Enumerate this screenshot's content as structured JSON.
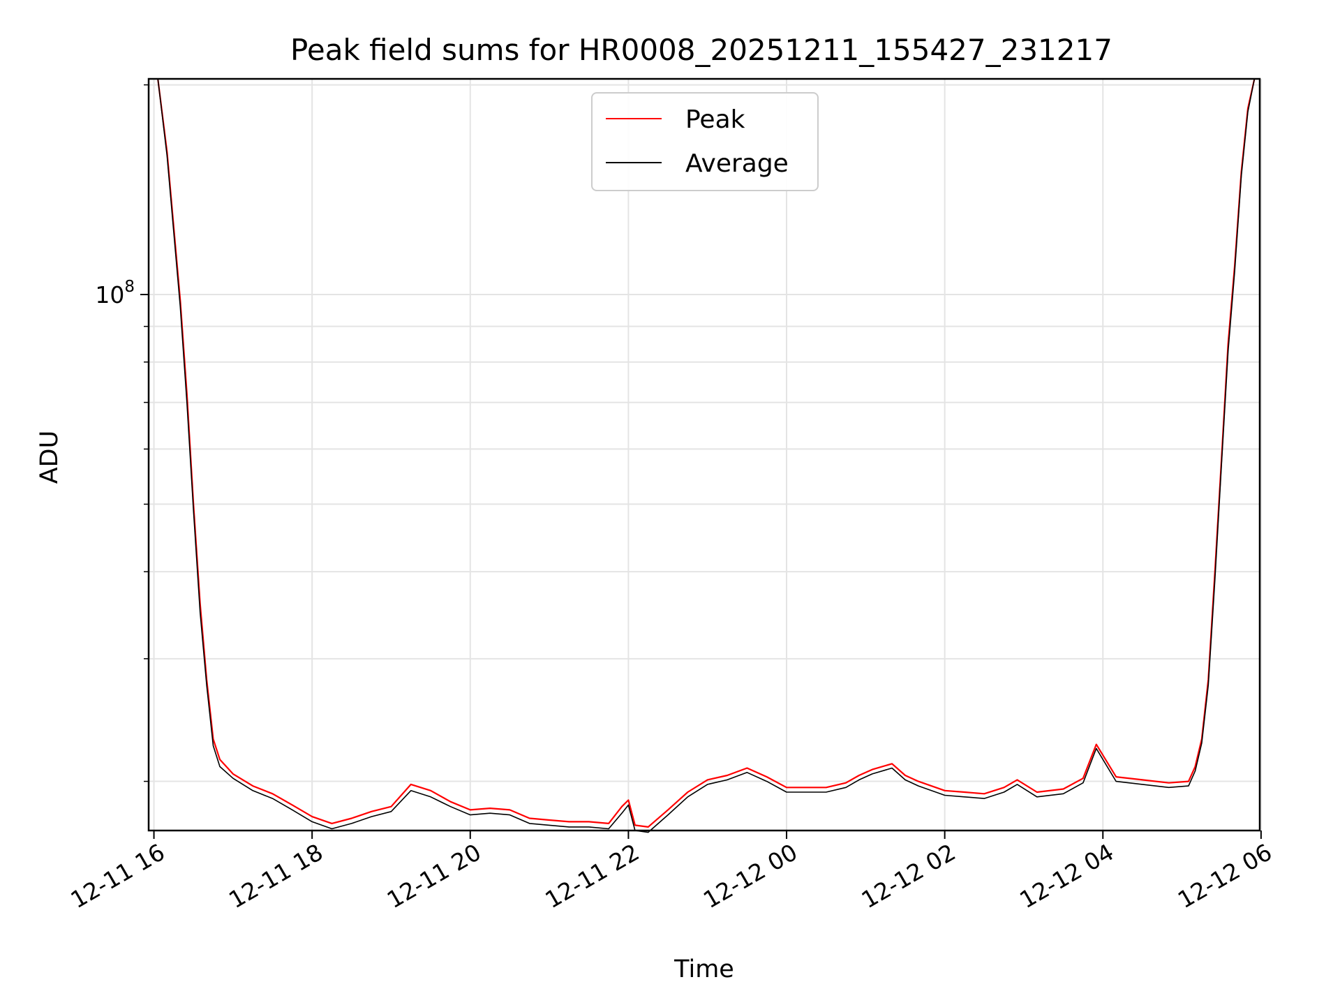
{
  "chart_data": {
    "type": "line",
    "title": "Peak field sums for HR0008_20251211_155427_231217",
    "xlabel": "Time",
    "ylabel": "ADU",
    "x_scale": "time",
    "y_scale": "log",
    "xlim": [
      "2025-12-11T15:56",
      "2025-12-12T05:59"
    ],
    "ylim": [
      17000000,
      204000000
    ],
    "x_ticks": [
      "2025-12-11T16:00",
      "2025-12-11T18:00",
      "2025-12-11T20:00",
      "2025-12-11T22:00",
      "2025-12-12T00:00",
      "2025-12-12T02:00",
      "2025-12-12T04:00",
      "2025-12-12T06:00"
    ],
    "x_tick_labels": [
      "12-11 16",
      "12-11 18",
      "12-11 20",
      "12-11 22",
      "12-12 00",
      "12-12 02",
      "12-12 04",
      "12-12 06"
    ],
    "y_major_ticks": [
      100000000
    ],
    "y_major_label": {
      "base": "10",
      "exponent": "8"
    },
    "y_minor_ticks": [
      20000000,
      30000000,
      40000000,
      50000000,
      60000000,
      70000000,
      80000000,
      90000000,
      200000000
    ],
    "grid": true,
    "legend_position": "top-center",
    "series": [
      {
        "name": "Peak",
        "color": "#ff0000",
        "x": [
          "2025-12-11T16:03",
          "2025-12-11T16:10",
          "2025-12-11T16:15",
          "2025-12-11T16:20",
          "2025-12-11T16:25",
          "2025-12-11T16:30",
          "2025-12-11T16:35",
          "2025-12-11T16:40",
          "2025-12-11T16:45",
          "2025-12-11T16:50",
          "2025-12-11T17:00",
          "2025-12-11T17:15",
          "2025-12-11T17:30",
          "2025-12-11T17:45",
          "2025-12-11T18:00",
          "2025-12-11T18:15",
          "2025-12-11T18:30",
          "2025-12-11T18:45",
          "2025-12-11T19:00",
          "2025-12-11T19:15",
          "2025-12-11T19:30",
          "2025-12-11T19:45",
          "2025-12-11T20:00",
          "2025-12-11T20:15",
          "2025-12-11T20:30",
          "2025-12-11T20:45",
          "2025-12-11T21:00",
          "2025-12-11T21:15",
          "2025-12-11T21:30",
          "2025-12-11T21:45",
          "2025-12-11T21:55",
          "2025-12-11T22:00",
          "2025-12-11T22:05",
          "2025-12-11T22:15",
          "2025-12-11T22:30",
          "2025-12-11T22:45",
          "2025-12-11T23:00",
          "2025-12-11T23:15",
          "2025-12-11T23:30",
          "2025-12-11T23:45",
          "2025-12-12T00:00",
          "2025-12-12T00:15",
          "2025-12-12T00:30",
          "2025-12-12T00:45",
          "2025-12-12T00:55",
          "2025-12-12T01:05",
          "2025-12-12T01:20",
          "2025-12-12T01:30",
          "2025-12-12T01:40",
          "2025-12-12T02:00",
          "2025-12-12T02:15",
          "2025-12-12T02:30",
          "2025-12-12T02:45",
          "2025-12-12T02:55",
          "2025-12-12T03:10",
          "2025-12-12T03:30",
          "2025-12-12T03:45",
          "2025-12-12T03:55",
          "2025-12-12T04:10",
          "2025-12-12T04:30",
          "2025-12-12T04:50",
          "2025-12-12T05:05",
          "2025-12-12T05:10",
          "2025-12-12T05:15",
          "2025-12-12T05:20",
          "2025-12-12T05:25",
          "2025-12-12T05:30",
          "2025-12-12T05:35",
          "2025-12-12T05:40",
          "2025-12-12T05:45",
          "2025-12-12T05:50",
          "2025-12-12T05:55"
        ],
        "y": [
          204000000,
          160000000,
          125000000,
          98000000,
          72000000,
          50000000,
          36000000,
          28000000,
          23000000,
          21500000,
          20500000,
          19700000,
          19200000,
          18500000,
          17800000,
          17400000,
          17700000,
          18100000,
          18400000,
          19800000,
          19400000,
          18700000,
          18200000,
          18300000,
          18200000,
          17700000,
          17600000,
          17500000,
          17500000,
          17400000,
          18400000,
          18800000,
          17300000,
          17200000,
          18200000,
          19300000,
          20100000,
          20400000,
          20900000,
          20300000,
          19600000,
          19600000,
          19600000,
          19900000,
          20400000,
          20800000,
          21200000,
          20400000,
          20000000,
          19400000,
          19300000,
          19200000,
          19600000,
          20100000,
          19300000,
          19500000,
          20200000,
          22600000,
          20300000,
          20100000,
          19900000,
          20000000,
          21000000,
          23000000,
          28000000,
          40000000,
          58000000,
          85000000,
          110000000,
          150000000,
          185000000,
          204000000
        ]
      },
      {
        "name": "Average",
        "color": "#000000",
        "x": [
          "2025-12-11T16:03",
          "2025-12-11T16:10",
          "2025-12-11T16:15",
          "2025-12-11T16:20",
          "2025-12-11T16:25",
          "2025-12-11T16:30",
          "2025-12-11T16:35",
          "2025-12-11T16:40",
          "2025-12-11T16:45",
          "2025-12-11T16:50",
          "2025-12-11T17:00",
          "2025-12-11T17:15",
          "2025-12-11T17:30",
          "2025-12-11T17:45",
          "2025-12-11T18:00",
          "2025-12-11T18:15",
          "2025-12-11T18:30",
          "2025-12-11T18:45",
          "2025-12-11T19:00",
          "2025-12-11T19:15",
          "2025-12-11T19:30",
          "2025-12-11T19:45",
          "2025-12-11T20:00",
          "2025-12-11T20:15",
          "2025-12-11T20:30",
          "2025-12-11T20:45",
          "2025-12-11T21:00",
          "2025-12-11T21:15",
          "2025-12-11T21:30",
          "2025-12-11T21:45",
          "2025-12-11T21:55",
          "2025-12-11T22:00",
          "2025-12-11T22:05",
          "2025-12-11T22:15",
          "2025-12-11T22:30",
          "2025-12-11T22:45",
          "2025-12-11T23:00",
          "2025-12-11T23:15",
          "2025-12-11T23:30",
          "2025-12-11T23:45",
          "2025-12-12T00:00",
          "2025-12-12T00:15",
          "2025-12-12T00:30",
          "2025-12-12T00:45",
          "2025-12-12T00:55",
          "2025-12-12T01:05",
          "2025-12-12T01:20",
          "2025-12-12T01:30",
          "2025-12-12T01:40",
          "2025-12-12T02:00",
          "2025-12-12T02:15",
          "2025-12-12T02:30",
          "2025-12-12T02:45",
          "2025-12-12T02:55",
          "2025-12-12T03:10",
          "2025-12-12T03:30",
          "2025-12-12T03:45",
          "2025-12-12T03:55",
          "2025-12-12T04:10",
          "2025-12-12T04:30",
          "2025-12-12T04:50",
          "2025-12-12T05:05",
          "2025-12-12T05:10",
          "2025-12-12T05:15",
          "2025-12-12T05:20",
          "2025-12-12T05:25",
          "2025-12-12T05:30",
          "2025-12-12T05:35",
          "2025-12-12T05:40",
          "2025-12-12T05:45",
          "2025-12-12T05:50",
          "2025-12-12T05:55"
        ],
        "y": [
          204000000,
          158000000,
          123000000,
          96000000,
          70000000,
          49000000,
          35000000,
          27500000,
          22500000,
          21000000,
          20200000,
          19400000,
          18900000,
          18200000,
          17500000,
          17100000,
          17400000,
          17800000,
          18100000,
          19400000,
          19000000,
          18400000,
          17900000,
          18000000,
          17900000,
          17400000,
          17300000,
          17200000,
          17200000,
          17100000,
          18000000,
          18500000,
          17000000,
          16900000,
          17900000,
          19000000,
          19800000,
          20100000,
          20600000,
          20000000,
          19300000,
          19300000,
          19300000,
          19600000,
          20100000,
          20500000,
          20900000,
          20100000,
          19700000,
          19100000,
          19000000,
          18900000,
          19300000,
          19800000,
          19000000,
          19200000,
          19900000,
          22300000,
          20000000,
          19800000,
          19600000,
          19700000,
          20700000,
          22700000,
          27500000,
          39000000,
          57000000,
          83000000,
          108000000,
          148000000,
          183000000,
          204000000
        ]
      }
    ]
  }
}
